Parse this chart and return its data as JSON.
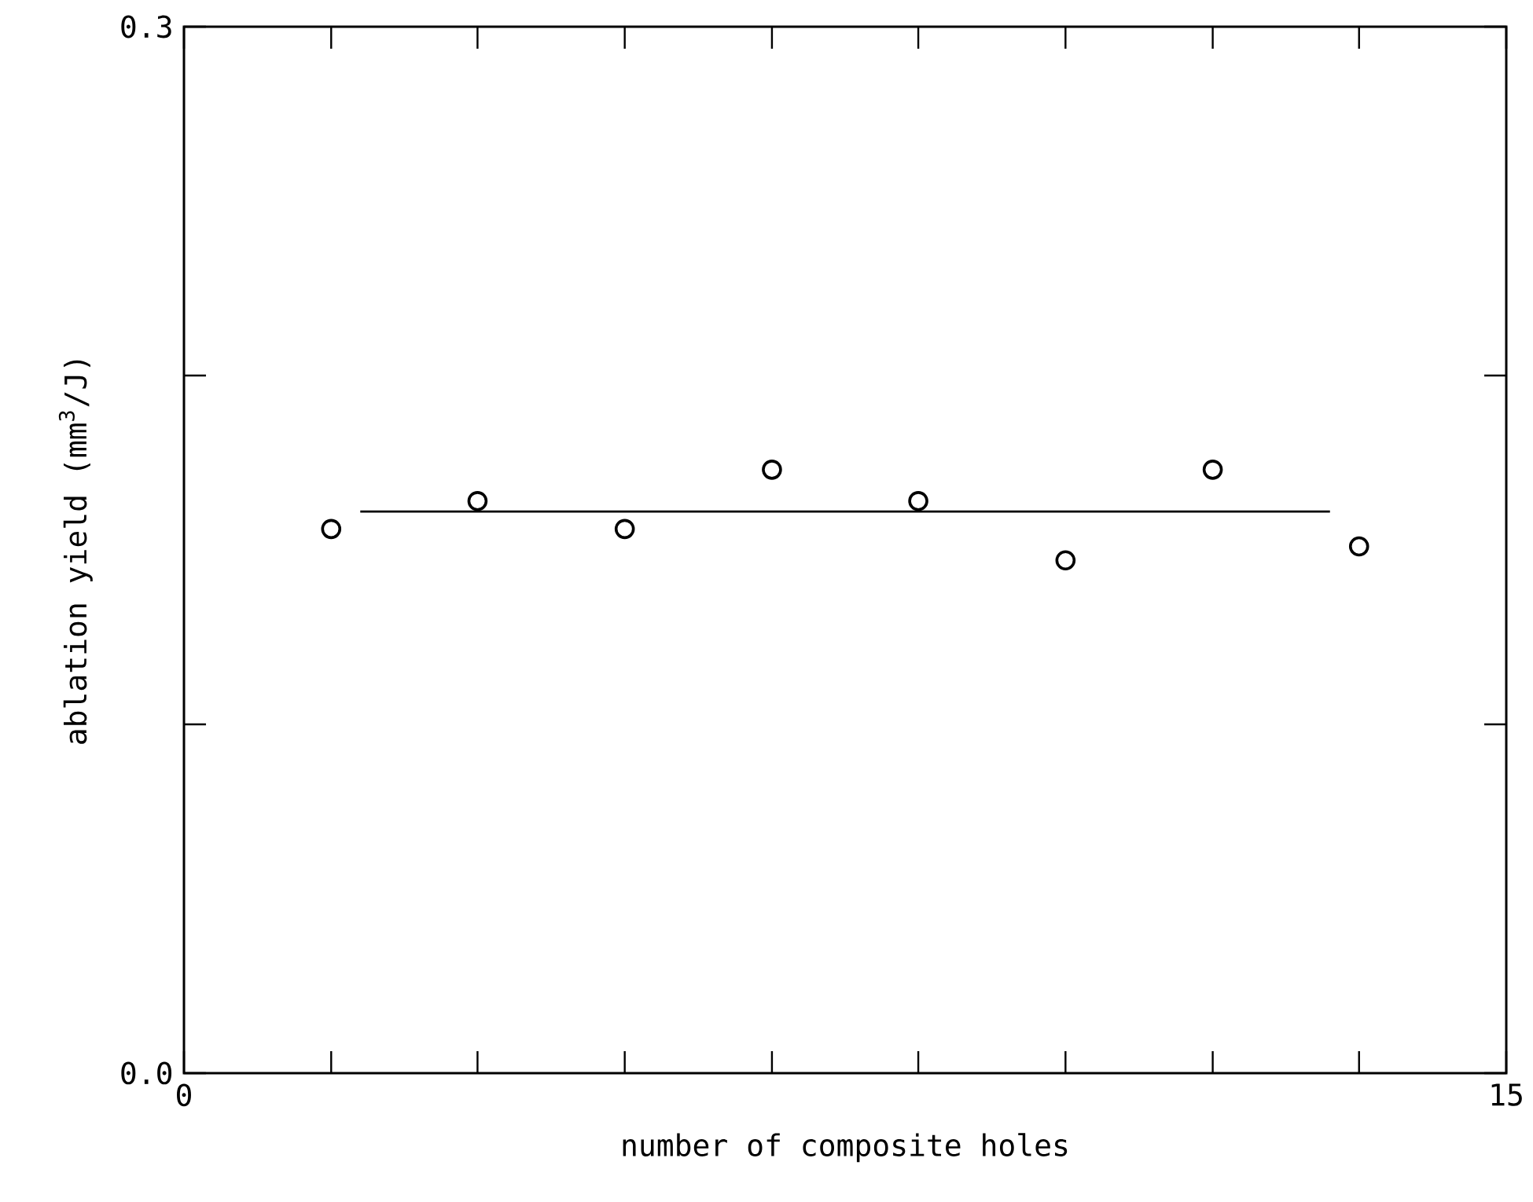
{
  "chart_data": {
    "type": "scatter",
    "xlabel": "number of composite holes",
    "ylabel": "ablation yield (mm$^{3}$/J)",
    "xlim": [
      0,
      15
    ],
    "ylim": [
      0,
      0.3
    ],
    "xticks": [
      0,
      {
        "value": 1.67,
        "label": null
      },
      {
        "value": 3.33,
        "label": null
      },
      {
        "value": 5,
        "label": null
      },
      {
        "value": 6.67,
        "label": null
      },
      {
        "value": 8.33,
        "label": null
      },
      {
        "value": 10,
        "label": null
      },
      {
        "value": 11.67,
        "label": null
      },
      {
        "value": 13.33,
        "label": null
      },
      15
    ],
    "yticks": [
      {
        "value": 0,
        "label": "0.0"
      },
      {
        "value": 0.1,
        "label": null
      },
      {
        "value": 0.2,
        "label": null
      },
      0.3
    ],
    "series": [
      {
        "marker": "circle",
        "color": "#000000",
        "x": [
          1.67,
          3.33,
          5,
          6.67,
          8.33,
          10,
          11.67,
          13.33
        ],
        "values": [
          0.156,
          0.164,
          0.156,
          0.173,
          0.164,
          0.147,
          0.173,
          0.151
        ]
      },
      {
        "type": "line",
        "marker": "none",
        "color": "#000000",
        "x": [
          2.0,
          13.0
        ],
        "values": [
          0.161,
          0.161
        ]
      }
    ]
  }
}
